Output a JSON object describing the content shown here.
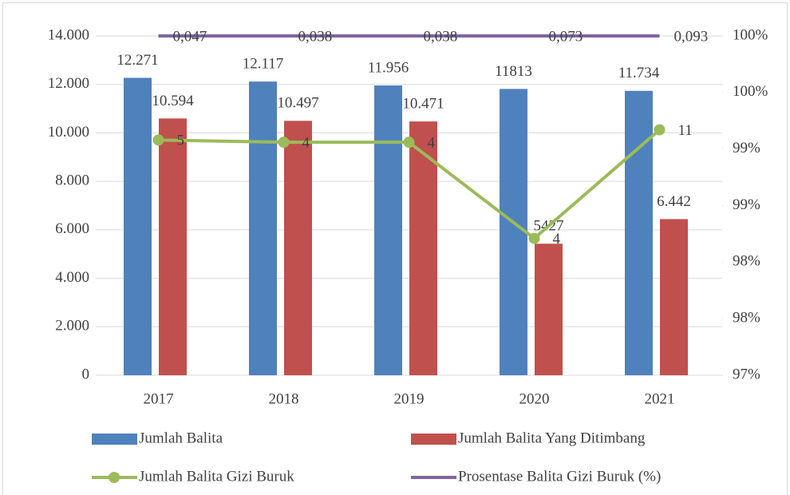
{
  "chart_data": {
    "type": "bar",
    "categories": [
      "2017",
      "2018",
      "2019",
      "2020",
      "2021"
    ],
    "series": [
      {
        "name": "Jumlah Balita",
        "color": "#4f81bd",
        "values": [
          12271,
          12117,
          11956,
          11813,
          11734
        ],
        "value_labels": [
          "12.271",
          "12.117",
          "11.956",
          "11813",
          "11.734"
        ]
      },
      {
        "name": "Jumlah Balita Yang Ditimbang",
        "color": "#c0504d",
        "values": [
          10594,
          10497,
          10471,
          5427,
          6442
        ],
        "value_labels": [
          "10.594",
          "10.497",
          "10.471",
          "5427",
          "6.442"
        ]
      },
      {
        "name": "Jumlah Balita Gizi Buruk",
        "type": "line",
        "axis": "y2",
        "color": "#9bbb59",
        "values": [
          0.9908,
          0.9906,
          0.9906,
          0.9821,
          0.9917
        ],
        "annotations": [
          "5",
          "4",
          "4",
          "4",
          "11"
        ]
      },
      {
        "name": "Prosentase Balita Gizi Buruk (%)",
        "type": "line",
        "axis": "y2",
        "color": "#8064a2",
        "values": [
          1.0,
          1.0,
          1.0,
          1.0,
          1.0
        ],
        "annotations": [
          "0,047",
          "0,038",
          "0,038",
          "0,073",
          "0,093"
        ]
      }
    ],
    "ylim": [
      0,
      14000
    ],
    "yticks": [
      0,
      {
        "value": 2000,
        "label": "2.000"
      },
      {
        "value": 4000,
        "label": "4.000"
      },
      {
        "value": 6000,
        "label": "6.000"
      },
      {
        "value": 8000,
        "label": "8.000"
      },
      {
        "value": 10000,
        "label": "10.000"
      },
      {
        "value": 12000,
        "label": "12.000"
      },
      {
        "value": 14000,
        "label": "14.000"
      }
    ],
    "y2lim": [
      0.97,
      1.0
    ],
    "y2ticks": [
      {
        "value": 0.97,
        "label": "97%"
      },
      {
        "value": 0.975,
        "label": "98%"
      },
      {
        "value": 0.98,
        "label": "98%"
      },
      {
        "value": 0.985,
        "label": "99%"
      },
      {
        "value": 0.99,
        "label": "99%"
      },
      {
        "value": 0.995,
        "label": "100%"
      },
      {
        "value": 1.0,
        "label": "100%"
      }
    ],
    "grid": true,
    "legend": "bottom"
  }
}
